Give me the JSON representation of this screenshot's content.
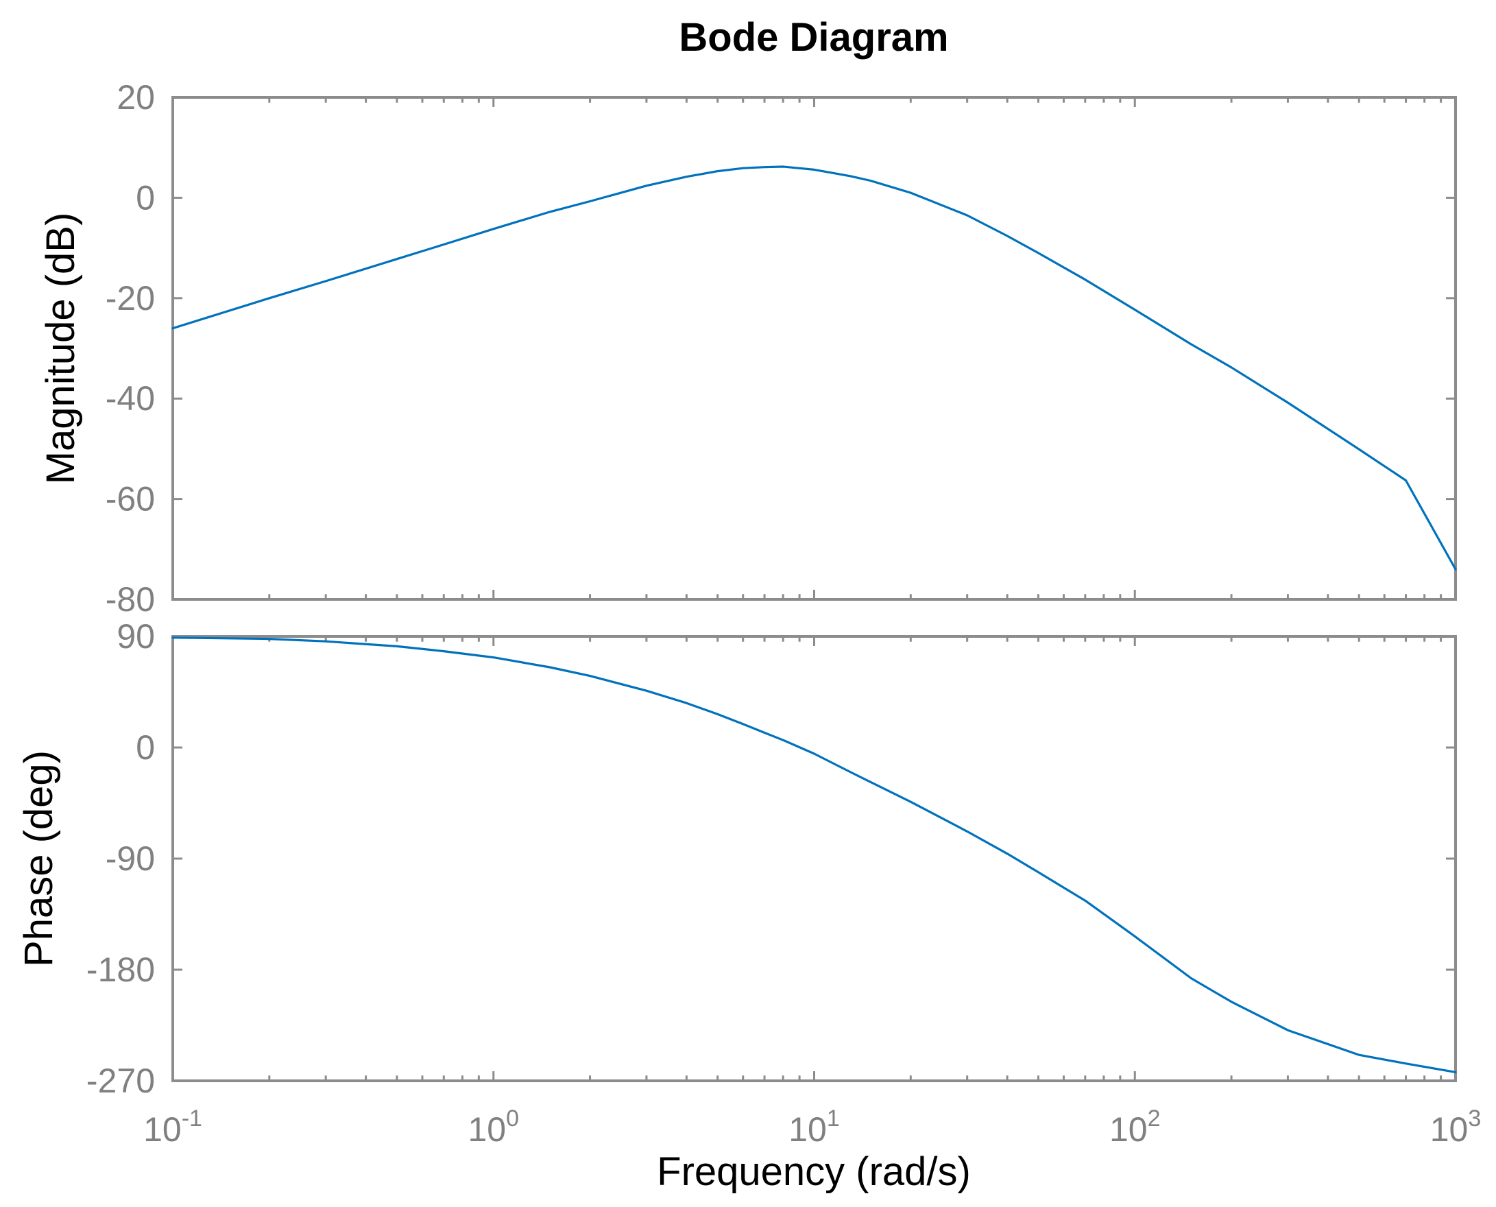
{
  "chart_data": {
    "type": "line",
    "title": "Bode Diagram",
    "xlabel": "Frequency  (rad/s)",
    "x_scale": "log",
    "xlim": [
      0.1,
      1000
    ],
    "x_ticks": [
      {
        "base": "10",
        "exp": "-1"
      },
      {
        "base": "10",
        "exp": "0"
      },
      {
        "base": "10",
        "exp": "1"
      },
      {
        "base": "10",
        "exp": "2"
      },
      {
        "base": "10",
        "exp": "3"
      }
    ],
    "grid": false,
    "line_color": "#0072BD",
    "panels": [
      {
        "ylabel": "Magnitude (dB)",
        "ylim": [
          -80,
          20
        ],
        "yticks": [
          "20",
          "0",
          "-20",
          "-40",
          "-60",
          "-80"
        ],
        "x": [
          0.1,
          0.2,
          0.3,
          0.5,
          0.7,
          1,
          1.5,
          2,
          3,
          4,
          5,
          6,
          7,
          8,
          10,
          13,
          15,
          20,
          30,
          40,
          50,
          70,
          100,
          150,
          200,
          300,
          500,
          700,
          1000
        ],
        "y": [
          -26,
          -20,
          -16.6,
          -12.2,
          -9.3,
          -6.2,
          -2.8,
          -0.7,
          2.4,
          4.2,
          5.3,
          5.9,
          6.1,
          6.2,
          5.6,
          4.3,
          3.4,
          1.0,
          -3.5,
          -7.6,
          -11,
          -16.3,
          -22.3,
          -29.2,
          -33.8,
          -40.8,
          -50.1,
          -56.3,
          -74
        ]
      },
      {
        "ylabel": "Phase (deg)",
        "ylim": [
          -270,
          90
        ],
        "yticks": [
          "90",
          "0",
          "-90",
          "-180",
          "-270"
        ],
        "x": [
          0.1,
          0.2,
          0.3,
          0.5,
          0.7,
          1,
          1.5,
          2,
          3,
          4,
          5,
          6,
          7,
          8,
          10,
          13,
          15,
          20,
          30,
          40,
          50,
          70,
          100,
          150,
          200,
          300,
          500,
          700,
          1000
        ],
        "y": [
          89,
          88,
          86,
          82,
          78,
          73,
          65,
          58,
          46,
          36,
          27,
          19,
          12,
          6,
          -5,
          -20,
          -28,
          -44,
          -68,
          -86,
          -101,
          -124,
          -153,
          -187,
          -206,
          -229,
          -249,
          -256,
          -263
        ]
      }
    ]
  }
}
